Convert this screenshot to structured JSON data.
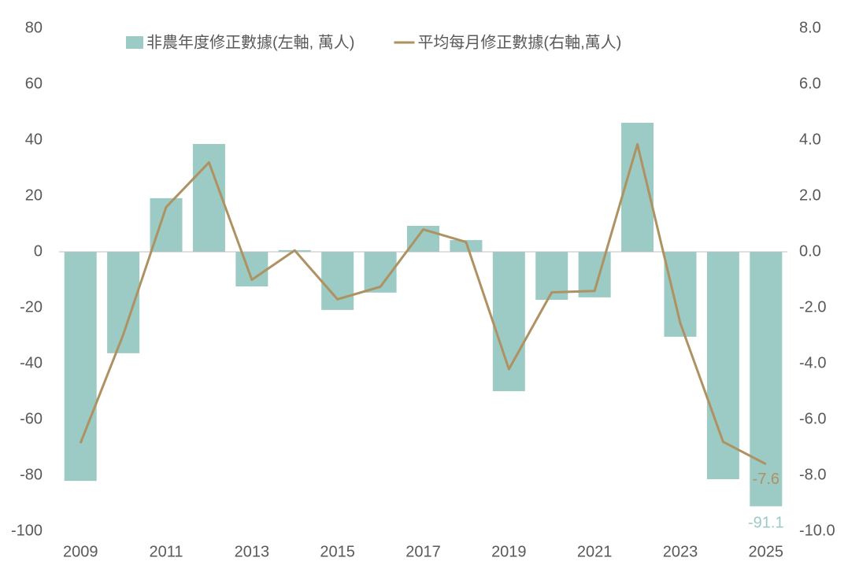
{
  "chart_data": {
    "type": "bar-line",
    "categories": [
      "2009",
      null,
      "2011",
      null,
      "2013",
      null,
      "2015",
      null,
      "2017",
      null,
      "2019",
      null,
      "2021",
      null,
      "2023",
      null,
      "2025"
    ],
    "series": [
      {
        "name": "非農年度修正數據(左軸, 萬人)",
        "type": "bar",
        "color": "#9ccac4",
        "values": [
          -82,
          -36.3,
          19.2,
          38.6,
          -12.4,
          0.6,
          -20.8,
          -14.6,
          9.3,
          4.2,
          -49.9,
          -17.2,
          -16.3,
          46.2,
          -30.4,
          -81.4,
          -91.1
        ]
      },
      {
        "name": "平均每月修正數據(右軸,萬人)",
        "type": "line",
        "axis": "y2",
        "color": "#ae9262",
        "values": [
          -6.85,
          -2.96,
          1.6,
          3.2,
          -1.0,
          0.05,
          -1.7,
          -1.25,
          0.8,
          0.35,
          -4.2,
          -1.45,
          -1.4,
          3.85,
          -2.55,
          -6.8,
          -7.6
        ]
      }
    ],
    "label_last": true,
    "ylim": [
      -100,
      80
    ],
    "yticks": [
      -100,
      -80,
      -60,
      -40,
      -20,
      0,
      20,
      40,
      60,
      80
    ],
    "y2lim": [
      -10,
      8
    ],
    "y2ticks": [
      {
        "value": -10,
        "label": "-10.0"
      },
      {
        "value": -8,
        "label": "-8.0"
      },
      {
        "value": -6,
        "label": "-6.0"
      },
      {
        "value": -4,
        "label": "-4.0"
      },
      {
        "value": -2,
        "label": "-2.0"
      },
      {
        "value": 0,
        "label": "0.0"
      },
      {
        "value": 2,
        "label": "2.0"
      },
      {
        "value": 4,
        "label": "4.0"
      },
      {
        "value": 6,
        "label": "6.0"
      },
      {
        "value": 8,
        "label": "8.0"
      }
    ]
  }
}
